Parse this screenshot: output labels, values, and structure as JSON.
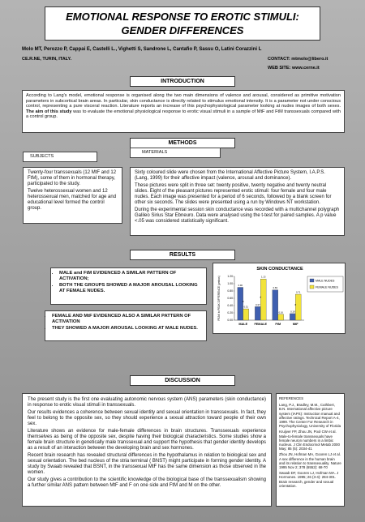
{
  "header": {
    "title_lines": [
      "EMOTIONAL RESPONSE TO EROTIC STIMULI:",
      "GENDER DIFFERENCES"
    ],
    "authors": "Molo MT, Perozzo P, Cappai E, Castelli L., Vighetti S, Sandrone L, Cantafio P, Sassu O, Latini Corazzini L",
    "affiliation": "CE.R.NE, TURIN, ITALY.",
    "contact": "CONTACT: mtmolo@libero.it",
    "web": "WEB SITE: www.cerne.it"
  },
  "introduction": {
    "heading": "INTRODUCTION",
    "text_before": "According to Lang's model, emotional response is organised along the two main dimensions of valence and arousal, considered as primitive motivation parameters in subcortical brain areas. In particular, skin conductance is directly related to stimulus emotional intensity. It is a parameter not under conscious control, representing a pure visceral reaction. Literature reports an increase of this psychophysiological parameter looking at nudes images of both sexes.",
    "text_bold": "The aim of this study",
    "text_after": "was to evaluate the emotional physiological response to erotic visual stimuli in a sample of MtF and FtM transsexuals compared with a control group."
  },
  "methods": {
    "heading": "METHODS",
    "subjects_label": "SUBJECTS",
    "subjects": [
      "Twenty-four transsexuals (12 MtF and 12 FtM), some of them in hormonal therapy, participated to the study.",
      "Twelve heterossexual women and 12 heterossexual men, matched for age and educational level formed the control group."
    ],
    "materials_label": "MATERIALS",
    "materials": [
      "Sixty coloured slide were chosen from the International Affective Picture System, I.A.P.S. (Lang, 1999) for their affective impact (valence, arousal and dominance).",
      "These pictures were split in three set: twenty positive, twenty negative and twenty neutral slides. Eight of the pleasant pictures represented erotic stimuli: four female and four male nudes. Each image was presented for a period of 6 seconds, followed by a blank screen for other six seconds. The slides were presented using a run by Windows NT workstation.",
      "During the experimental session skin conductance was recorded with a multichannel polygraph Galileo Sirius Star Ebneuro. Data were analysed using the t-test for paired samples. A p value <.05 was considered statistically significant."
    ]
  },
  "results": {
    "heading": "RESULTS",
    "box1": [
      "MALE and FtM EVIDENCED A SIMILAR PATTERN OF ACTIVATION;",
      "BOTH THE GROUPS SHOWED A MAJOR AROUSAL LOOKING AT FEMALE NUDES."
    ],
    "box2": [
      "FEMALE AND MtF EVIDENCED ALSO A SIMILAR PATTERN OF ACTIVATION",
      "THEY SHOWED A MAJOR AROUSAL LOOKING AT MALE NUDES."
    ]
  },
  "chart_data": {
    "type": "bar",
    "title": "SKIN CONDUCTANCE",
    "y_label": "PEAK to PEAK DIFFERENCE (μmhos)",
    "categories": [
      "MALE",
      "FEMALE",
      "FtM",
      "MtF"
    ],
    "series": [
      {
        "name": "MALE NUDES",
        "color": "#3f5fb0",
        "values": [
          0.9,
          0.37,
          0.83,
          0.18
        ],
        "value_labels": [
          "0.90",
          "0.37",
          "0.83",
          "0.18"
        ]
      },
      {
        "name": "FEMALE NUDES",
        "color": "#f2e33a",
        "values": [
          0.31,
          1.13,
          0.16,
          0.71
        ],
        "value_labels": [
          "0.31",
          "1.13",
          "0.16",
          "0.71"
        ]
      }
    ],
    "significance": [
      "*",
      "*",
      null,
      "*"
    ],
    "ylim": [
      0,
      1.2
    ],
    "yticks": [
      {
        "value": 0,
        "label": "0.00"
      },
      {
        "value": 0.2,
        "label": "0.20"
      },
      {
        "value": 0.4,
        "label": "0.40"
      },
      {
        "value": 0.6,
        "label": "0.60"
      },
      {
        "value": 0.8,
        "label": "0.80"
      },
      {
        "value": 1,
        "label": "1.00"
      },
      {
        "value": 1.2,
        "label": "1.20"
      }
    ],
    "grid": false
  },
  "discussion": {
    "heading": "DISCUSSION",
    "paragraphs": [
      "The present study is the first one evaluating autonomic nervous system (ANS) parameters (skin conductance) in response to erotic visual stimuli in transsexuals.",
      "Our results evidences a coherence between sexual identity and sexual orientation in transsexuals. In fact, they feel to belong to the opposite sex, so they should experience a sexual attraction toward people of their own sex.",
      "Literature shows an evidence for male-female differences in brain structures. Transsexuals experience themselves as being of the opposite sex, despite having their biological characteristics. Some studies show a female brain structure in genetically male transsexual and support the hypothesis that gender identity develops as a result of an interaction between the developing brain and sex hormones.",
      "Recent brain research has revealed structural differences in the hypothalamus in relation to biological sex and sexual orientation. The bed nucleus of the stria terminal ( BNST) might participate in forming gender identity. A study by Swaab revealed that BSNT, in the transsexual MtF has the same dimension as those observed in the women.",
      "Our study gives a contribution to the scientific knowledge of the biological base of the transsexualism showing a further similar ANS pattern between MtF and F on one side and FtM and M on the other."
    ],
    "references_heading": "REFERENCES",
    "references": [
      "Lang, P.J., Bradley, M.M., Cuthbert, B.N. International affective picture system (IAPS): Instruction manual and affective ratings. Technical Report A-4, 1999. The Center For Research in Psychophysiology, University of Florida",
      "Kruijver FP, Zhou JN, Pool CW et al. Male-to-female transsexuals have female neuron numbers in a limbic nucleus. J Clin Endocrinol Metab 2000 May; 85 (5): 2034-41",
      "Zhou JN, Hofman MA, Gooren LJ et al. A sex difference in the human brain and its relation to transsexuality. Nature 1995 Nov 2; 378 (6552): 68-70",
      "Swaab DF, Gooren LJ, Hofman MA. J Hormones. 1995; 26 (3-4): 284-301. Brain research, gender and sexual orientation."
    ]
  }
}
